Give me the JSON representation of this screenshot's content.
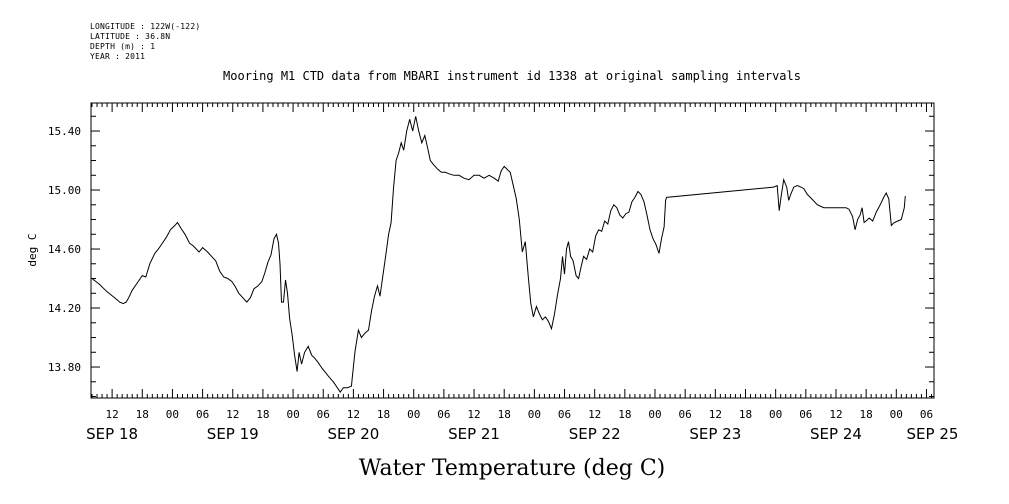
{
  "header": {
    "longitude": "LONGITUDE : 122W(-122)",
    "latitude": "LATITUDE : 36.8N",
    "depth": "DEPTH (m) : 1",
    "year": "YEAR : 2011"
  },
  "chart_data": {
    "type": "line",
    "title": "Mooring M1 CTD data from MBARI instrument id 1338 at original sampling intervals",
    "xlabel": "Water Temperature (deg C)",
    "ylabel": "deg C",
    "x_unit": "hours since SEP 18 00",
    "xlim": [
      7.8,
      175.5
    ],
    "ylim": [
      13.59,
      15.59
    ],
    "y_ticks": [
      "13.80",
      "14.20",
      "14.60",
      "15.00",
      "15.40"
    ],
    "y_tick_values": [
      13.8,
      14.2,
      14.6,
      15.0,
      15.4
    ],
    "hour_ticks": [
      {
        "x": 12,
        "label": "12"
      },
      {
        "x": 18,
        "label": "18"
      },
      {
        "x": 24,
        "label": "00"
      },
      {
        "x": 30,
        "label": "06"
      },
      {
        "x": 36,
        "label": "12"
      },
      {
        "x": 42,
        "label": "18"
      },
      {
        "x": 48,
        "label": "00"
      },
      {
        "x": 54,
        "label": "06"
      },
      {
        "x": 60,
        "label": "12"
      },
      {
        "x": 66,
        "label": "18"
      },
      {
        "x": 72,
        "label": "00"
      },
      {
        "x": 78,
        "label": "06"
      },
      {
        "x": 84,
        "label": "12"
      },
      {
        "x": 90,
        "label": "18"
      },
      {
        "x": 96,
        "label": "00"
      },
      {
        "x": 102,
        "label": "06"
      },
      {
        "x": 108,
        "label": "12"
      },
      {
        "x": 114,
        "label": "18"
      },
      {
        "x": 120,
        "label": "00"
      },
      {
        "x": 126,
        "label": "06"
      },
      {
        "x": 132,
        "label": "12"
      },
      {
        "x": 138,
        "label": "18"
      },
      {
        "x": 144,
        "label": "00"
      },
      {
        "x": 150,
        "label": "06"
      },
      {
        "x": 156,
        "label": "12"
      },
      {
        "x": 162,
        "label": "18"
      },
      {
        "x": 168,
        "label": "00"
      },
      {
        "x": 174,
        "label": "06"
      }
    ],
    "day_labels": [
      {
        "x": 12,
        "label": "SEP 18"
      },
      {
        "x": 36,
        "label": "SEP 19"
      },
      {
        "x": 60,
        "label": "SEP 20"
      },
      {
        "x": 84,
        "label": "SEP 21"
      },
      {
        "x": 108,
        "label": "SEP 22"
      },
      {
        "x": 132,
        "label": "SEP 23"
      },
      {
        "x": 156,
        "label": "SEP 24"
      },
      {
        "x": 175.2,
        "label": "SEP 25"
      }
    ],
    "series": [
      {
        "color": "#000000",
        "points": [
          [
            8.0,
            14.4
          ],
          [
            9.5,
            14.36
          ],
          [
            11.0,
            14.31
          ],
          [
            12.5,
            14.27
          ],
          [
            13.5,
            14.24
          ],
          [
            14.2,
            14.23
          ],
          [
            14.8,
            14.24
          ],
          [
            15.3,
            14.27
          ],
          [
            16.0,
            14.32
          ],
          [
            17.0,
            14.37
          ],
          [
            18.0,
            14.42
          ],
          [
            18.7,
            14.41
          ],
          [
            19.5,
            14.5
          ],
          [
            20.5,
            14.57
          ],
          [
            21.2,
            14.6
          ],
          [
            22.0,
            14.64
          ],
          [
            22.8,
            14.68
          ],
          [
            23.6,
            14.73
          ],
          [
            24.5,
            14.76
          ],
          [
            25.0,
            14.78
          ],
          [
            25.7,
            14.74
          ],
          [
            26.5,
            14.7
          ],
          [
            27.4,
            14.64
          ],
          [
            28.2,
            14.62
          ],
          [
            29.3,
            14.58
          ],
          [
            30.0,
            14.61
          ],
          [
            31.0,
            14.58
          ],
          [
            31.8,
            14.55
          ],
          [
            32.6,
            14.52
          ],
          [
            33.4,
            14.45
          ],
          [
            34.2,
            14.41
          ],
          [
            35.0,
            14.4
          ],
          [
            35.8,
            14.38
          ],
          [
            36.4,
            14.35
          ],
          [
            37.2,
            14.3
          ],
          [
            38.0,
            14.27
          ],
          [
            38.8,
            14.24
          ],
          [
            39.5,
            14.27
          ],
          [
            40.2,
            14.33
          ],
          [
            41.0,
            14.35
          ],
          [
            41.8,
            14.38
          ],
          [
            42.4,
            14.44
          ],
          [
            43.0,
            14.51
          ],
          [
            43.6,
            14.56
          ],
          [
            44.2,
            14.67
          ],
          [
            44.7,
            14.7
          ],
          [
            45.1,
            14.64
          ],
          [
            45.4,
            14.5
          ],
          [
            45.7,
            14.24
          ],
          [
            46.1,
            14.24
          ],
          [
            46.5,
            14.39
          ],
          [
            46.9,
            14.3
          ],
          [
            47.3,
            14.13
          ],
          [
            47.8,
            14.02
          ],
          [
            48.3,
            13.88
          ],
          [
            48.8,
            13.77
          ],
          [
            49.2,
            13.9
          ],
          [
            49.7,
            13.82
          ],
          [
            50.3,
            13.9
          ],
          [
            51.0,
            13.94
          ],
          [
            51.7,
            13.88
          ],
          [
            52.3,
            13.86
          ],
          [
            53.0,
            13.83
          ],
          [
            53.8,
            13.79
          ],
          [
            54.5,
            13.76
          ],
          [
            55.2,
            13.73
          ],
          [
            56.0,
            13.7
          ],
          [
            56.8,
            13.66
          ],
          [
            57.4,
            13.63
          ],
          [
            58.0,
            13.66
          ],
          [
            58.8,
            13.66
          ],
          [
            59.6,
            13.67
          ],
          [
            60.3,
            13.9
          ],
          [
            61.0,
            14.05
          ],
          [
            61.6,
            14.0
          ],
          [
            62.3,
            14.03
          ],
          [
            63.0,
            14.05
          ],
          [
            63.6,
            14.18
          ],
          [
            64.2,
            14.28
          ],
          [
            64.8,
            14.35
          ],
          [
            65.3,
            14.28
          ],
          [
            65.9,
            14.43
          ],
          [
            66.4,
            14.55
          ],
          [
            67.0,
            14.7
          ],
          [
            67.5,
            14.78
          ],
          [
            68.0,
            15.02
          ],
          [
            68.5,
            15.2
          ],
          [
            69.0,
            15.25
          ],
          [
            69.5,
            15.32
          ],
          [
            70.0,
            15.27
          ],
          [
            70.6,
            15.4
          ],
          [
            71.2,
            15.48
          ],
          [
            71.8,
            15.4
          ],
          [
            72.4,
            15.5
          ],
          [
            73.0,
            15.4
          ],
          [
            73.6,
            15.32
          ],
          [
            74.2,
            15.37
          ],
          [
            74.8,
            15.28
          ],
          [
            75.3,
            15.2
          ],
          [
            76.0,
            15.17
          ],
          [
            76.8,
            15.14
          ],
          [
            77.5,
            15.12
          ],
          [
            78.3,
            15.12
          ],
          [
            79.0,
            15.11
          ],
          [
            80.0,
            15.1
          ],
          [
            81.0,
            15.1
          ],
          [
            82.0,
            15.08
          ],
          [
            83.0,
            15.07
          ],
          [
            84.0,
            15.1
          ],
          [
            85.0,
            15.1
          ],
          [
            86.0,
            15.08
          ],
          [
            87.0,
            15.1
          ],
          [
            88.0,
            15.08
          ],
          [
            88.8,
            15.06
          ],
          [
            89.4,
            15.13
          ],
          [
            90.0,
            15.16
          ],
          [
            90.6,
            15.14
          ],
          [
            91.2,
            15.12
          ],
          [
            91.8,
            15.03
          ],
          [
            92.4,
            14.94
          ],
          [
            93.0,
            14.8
          ],
          [
            93.6,
            14.58
          ],
          [
            94.2,
            14.65
          ],
          [
            94.8,
            14.41
          ],
          [
            95.3,
            14.23
          ],
          [
            95.8,
            14.14
          ],
          [
            96.4,
            14.21
          ],
          [
            97.0,
            14.16
          ],
          [
            97.6,
            14.12
          ],
          [
            98.2,
            14.14
          ],
          [
            98.8,
            14.11
          ],
          [
            99.4,
            14.06
          ],
          [
            100.0,
            14.16
          ],
          [
            100.6,
            14.29
          ],
          [
            101.2,
            14.4
          ],
          [
            101.6,
            14.55
          ],
          [
            102.0,
            14.43
          ],
          [
            102.4,
            14.6
          ],
          [
            102.8,
            14.65
          ],
          [
            103.2,
            14.55
          ],
          [
            103.7,
            14.52
          ],
          [
            104.3,
            14.42
          ],
          [
            104.8,
            14.4
          ],
          [
            105.3,
            14.48
          ],
          [
            105.8,
            14.55
          ],
          [
            106.4,
            14.53
          ],
          [
            107.0,
            14.6
          ],
          [
            107.6,
            14.58
          ],
          [
            108.2,
            14.69
          ],
          [
            108.8,
            14.73
          ],
          [
            109.4,
            14.72
          ],
          [
            110.0,
            14.79
          ],
          [
            110.6,
            14.77
          ],
          [
            111.2,
            14.86
          ],
          [
            111.8,
            14.9
          ],
          [
            112.4,
            14.88
          ],
          [
            113.0,
            14.83
          ],
          [
            113.6,
            14.81
          ],
          [
            114.2,
            14.84
          ],
          [
            114.8,
            14.85
          ],
          [
            115.4,
            14.92
          ],
          [
            116.0,
            14.95
          ],
          [
            116.6,
            14.99
          ],
          [
            117.2,
            14.97
          ],
          [
            117.8,
            14.92
          ],
          [
            118.4,
            14.83
          ],
          [
            119.0,
            14.73
          ],
          [
            119.6,
            14.67
          ],
          [
            120.2,
            14.63
          ],
          [
            120.8,
            14.57
          ],
          [
            121.3,
            14.67
          ],
          [
            121.8,
            14.75
          ],
          [
            122.1,
            14.93
          ],
          [
            122.3,
            14.95
          ],
          [
            143.6,
            15.02
          ],
          [
            144.3,
            15.03
          ],
          [
            144.7,
            14.86
          ],
          [
            145.1,
            14.96
          ],
          [
            145.6,
            15.07
          ],
          [
            146.2,
            15.02
          ],
          [
            146.6,
            14.93
          ],
          [
            147.0,
            14.97
          ],
          [
            147.6,
            15.02
          ],
          [
            148.3,
            15.03
          ],
          [
            149.0,
            15.02
          ],
          [
            149.6,
            15.01
          ],
          [
            150.3,
            14.97
          ],
          [
            151.2,
            14.94
          ],
          [
            152.3,
            14.9
          ],
          [
            153.6,
            14.88
          ],
          [
            155.0,
            14.88
          ],
          [
            156.5,
            14.88
          ],
          [
            158.0,
            14.88
          ],
          [
            158.6,
            14.87
          ],
          [
            159.3,
            14.82
          ],
          [
            159.8,
            14.73
          ],
          [
            160.3,
            14.8
          ],
          [
            160.8,
            14.83
          ],
          [
            161.2,
            14.88
          ],
          [
            161.6,
            14.78
          ],
          [
            162.0,
            14.79
          ],
          [
            162.6,
            14.81
          ],
          [
            163.3,
            14.79
          ],
          [
            164.0,
            14.85
          ],
          [
            164.8,
            14.9
          ],
          [
            165.5,
            14.95
          ],
          [
            166.0,
            14.98
          ],
          [
            166.5,
            14.94
          ],
          [
            167.0,
            14.76
          ],
          [
            167.6,
            14.78
          ],
          [
            168.3,
            14.79
          ],
          [
            169.0,
            14.8
          ],
          [
            169.6,
            14.88
          ],
          [
            169.8,
            14.96
          ]
        ]
      }
    ]
  }
}
